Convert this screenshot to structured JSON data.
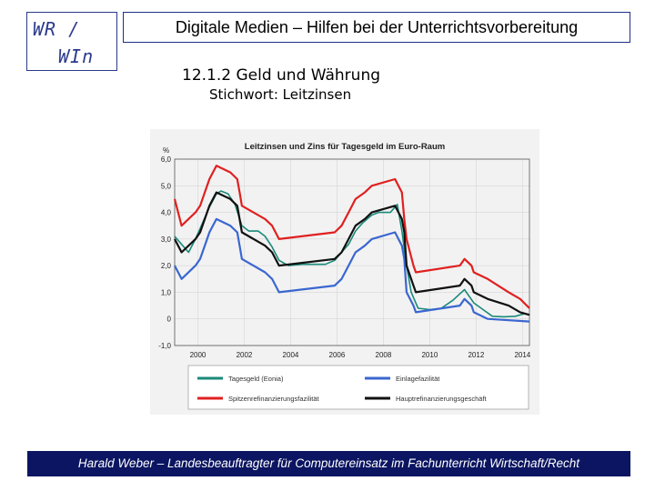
{
  "logo": {
    "line1": "WR /",
    "line2": "WIn"
  },
  "header": {
    "title": "Digitale Medien – Hilfen bei der Unterrichtsvorbereitung"
  },
  "slide": {
    "heading": "12.1.2 Geld und Währung",
    "subheading": "Stichwort: Leitzinsen"
  },
  "footer": {
    "text": "Harald Weber – Landesbeauftragter für Computereinsatz im Fachunterricht Wirtschaft/Recht"
  },
  "chart_data": {
    "type": "line",
    "title": "Leitzinsen und Zins für Tagesgeld im Euro-Raum",
    "ylabel": "%",
    "ylim": [
      -1.0,
      6.0
    ],
    "xlim": [
      1999.0,
      2014.3
    ],
    "yticks": [
      "6,0",
      "5,0",
      "4,0",
      "3,0",
      "2,0",
      "1,0",
      "0",
      "-1,0"
    ],
    "ytick_values": [
      6,
      5,
      4,
      3,
      2,
      1,
      0,
      -1
    ],
    "xticks": [
      "2000",
      "2002",
      "2004",
      "2006",
      "2008",
      "2010",
      "2012",
      "2014"
    ],
    "xtick_values": [
      2000,
      2002,
      2004,
      2006,
      2008,
      2010,
      2012,
      2014
    ],
    "grid": true,
    "legend_position": "bottom",
    "series": [
      {
        "name": "Tagesgeld (Eonia)",
        "color": "#1a8a7a",
        "points": [
          [
            1999.0,
            3.1
          ],
          [
            1999.3,
            2.8
          ],
          [
            1999.6,
            2.5
          ],
          [
            1999.9,
            3.0
          ],
          [
            2000.2,
            3.6
          ],
          [
            2000.5,
            4.2
          ],
          [
            2000.8,
            4.7
          ],
          [
            2001.0,
            4.8
          ],
          [
            2001.3,
            4.7
          ],
          [
            2001.6,
            4.3
          ],
          [
            2001.9,
            3.5
          ],
          [
            2002.2,
            3.3
          ],
          [
            2002.6,
            3.3
          ],
          [
            2002.9,
            3.1
          ],
          [
            2003.2,
            2.7
          ],
          [
            2003.5,
            2.2
          ],
          [
            2003.9,
            2.0
          ],
          [
            2004.5,
            2.05
          ],
          [
            2005.0,
            2.05
          ],
          [
            2005.5,
            2.05
          ],
          [
            2005.9,
            2.2
          ],
          [
            2006.2,
            2.5
          ],
          [
            2006.5,
            2.8
          ],
          [
            2006.8,
            3.3
          ],
          [
            2007.1,
            3.6
          ],
          [
            2007.5,
            3.9
          ],
          [
            2007.8,
            4.0
          ],
          [
            2008.0,
            4.0
          ],
          [
            2008.3,
            4.0
          ],
          [
            2008.6,
            4.3
          ],
          [
            2008.8,
            3.3
          ],
          [
            2009.0,
            2.0
          ],
          [
            2009.2,
            1.0
          ],
          [
            2009.5,
            0.4
          ],
          [
            2010.0,
            0.35
          ],
          [
            2010.5,
            0.4
          ],
          [
            2011.0,
            0.7
          ],
          [
            2011.5,
            1.1
          ],
          [
            2011.9,
            0.6
          ],
          [
            2012.3,
            0.35
          ],
          [
            2012.7,
            0.1
          ],
          [
            2013.2,
            0.08
          ],
          [
            2013.7,
            0.1
          ],
          [
            2014.1,
            0.2
          ]
        ]
      },
      {
        "name": "Einlagefazilität",
        "color": "#3a67d0",
        "points": [
          [
            1999.0,
            2.0
          ],
          [
            1999.3,
            1.5
          ],
          [
            1999.9,
            2.0
          ],
          [
            2000.1,
            2.25
          ],
          [
            2000.3,
            2.75
          ],
          [
            2000.5,
            3.25
          ],
          [
            2000.8,
            3.75
          ],
          [
            2001.4,
            3.5
          ],
          [
            2001.7,
            3.25
          ],
          [
            2001.8,
            2.75
          ],
          [
            2001.9,
            2.25
          ],
          [
            2002.9,
            1.75
          ],
          [
            2003.2,
            1.5
          ],
          [
            2003.5,
            1.0
          ],
          [
            2005.9,
            1.25
          ],
          [
            2006.2,
            1.5
          ],
          [
            2006.5,
            2.0
          ],
          [
            2006.8,
            2.5
          ],
          [
            2007.2,
            2.75
          ],
          [
            2007.5,
            3.0
          ],
          [
            2008.5,
            3.25
          ],
          [
            2008.8,
            2.75
          ],
          [
            2008.9,
            2.25
          ],
          [
            2009.0,
            1.0
          ],
          [
            2009.3,
            0.5
          ],
          [
            2009.4,
            0.25
          ],
          [
            2011.3,
            0.5
          ],
          [
            2011.5,
            0.75
          ],
          [
            2011.8,
            0.5
          ],
          [
            2011.9,
            0.25
          ],
          [
            2012.5,
            0.0
          ],
          [
            2014.3,
            -0.1
          ]
        ]
      },
      {
        "name": "Spitzenrefinanzierungsfazilität",
        "color": "#e02020",
        "points": [
          [
            1999.0,
            4.5
          ],
          [
            1999.3,
            3.5
          ],
          [
            1999.9,
            4.0
          ],
          [
            2000.1,
            4.25
          ],
          [
            2000.3,
            4.75
          ],
          [
            2000.5,
            5.25
          ],
          [
            2000.8,
            5.75
          ],
          [
            2001.4,
            5.5
          ],
          [
            2001.7,
            5.25
          ],
          [
            2001.8,
            4.75
          ],
          [
            2001.9,
            4.25
          ],
          [
            2002.9,
            3.75
          ],
          [
            2003.2,
            3.5
          ],
          [
            2003.5,
            3.0
          ],
          [
            2005.9,
            3.25
          ],
          [
            2006.2,
            3.5
          ],
          [
            2006.5,
            4.0
          ],
          [
            2006.8,
            4.5
          ],
          [
            2007.2,
            4.75
          ],
          [
            2007.5,
            5.0
          ],
          [
            2008.5,
            5.25
          ],
          [
            2008.8,
            4.75
          ],
          [
            2008.9,
            3.75
          ],
          [
            2009.0,
            3.0
          ],
          [
            2009.3,
            2.0
          ],
          [
            2009.4,
            1.75
          ],
          [
            2011.3,
            2.0
          ],
          [
            2011.5,
            2.25
          ],
          [
            2011.8,
            2.0
          ],
          [
            2011.9,
            1.75
          ],
          [
            2012.5,
            1.5
          ],
          [
            2013.4,
            1.0
          ],
          [
            2013.9,
            0.75
          ],
          [
            2014.3,
            0.4
          ]
        ]
      },
      {
        "name": "Hauptrefinanzierungsgeschäft",
        "color": "#111111",
        "points": [
          [
            1999.0,
            3.0
          ],
          [
            1999.3,
            2.5
          ],
          [
            1999.9,
            3.0
          ],
          [
            2000.1,
            3.25
          ],
          [
            2000.3,
            3.75
          ],
          [
            2000.5,
            4.25
          ],
          [
            2000.8,
            4.75
          ],
          [
            2001.4,
            4.5
          ],
          [
            2001.7,
            4.25
          ],
          [
            2001.8,
            3.75
          ],
          [
            2001.9,
            3.25
          ],
          [
            2002.9,
            2.75
          ],
          [
            2003.2,
            2.5
          ],
          [
            2003.5,
            2.0
          ],
          [
            2005.9,
            2.25
          ],
          [
            2006.2,
            2.5
          ],
          [
            2006.5,
            3.0
          ],
          [
            2006.8,
            3.5
          ],
          [
            2007.2,
            3.75
          ],
          [
            2007.5,
            4.0
          ],
          [
            2008.5,
            4.25
          ],
          [
            2008.8,
            3.75
          ],
          [
            2008.9,
            3.25
          ],
          [
            2009.0,
            2.0
          ],
          [
            2009.3,
            1.25
          ],
          [
            2009.4,
            1.0
          ],
          [
            2011.3,
            1.25
          ],
          [
            2011.5,
            1.5
          ],
          [
            2011.8,
            1.25
          ],
          [
            2011.9,
            1.0
          ],
          [
            2012.5,
            0.75
          ],
          [
            2013.4,
            0.5
          ],
          [
            2013.9,
            0.25
          ],
          [
            2014.3,
            0.15
          ]
        ]
      }
    ]
  }
}
